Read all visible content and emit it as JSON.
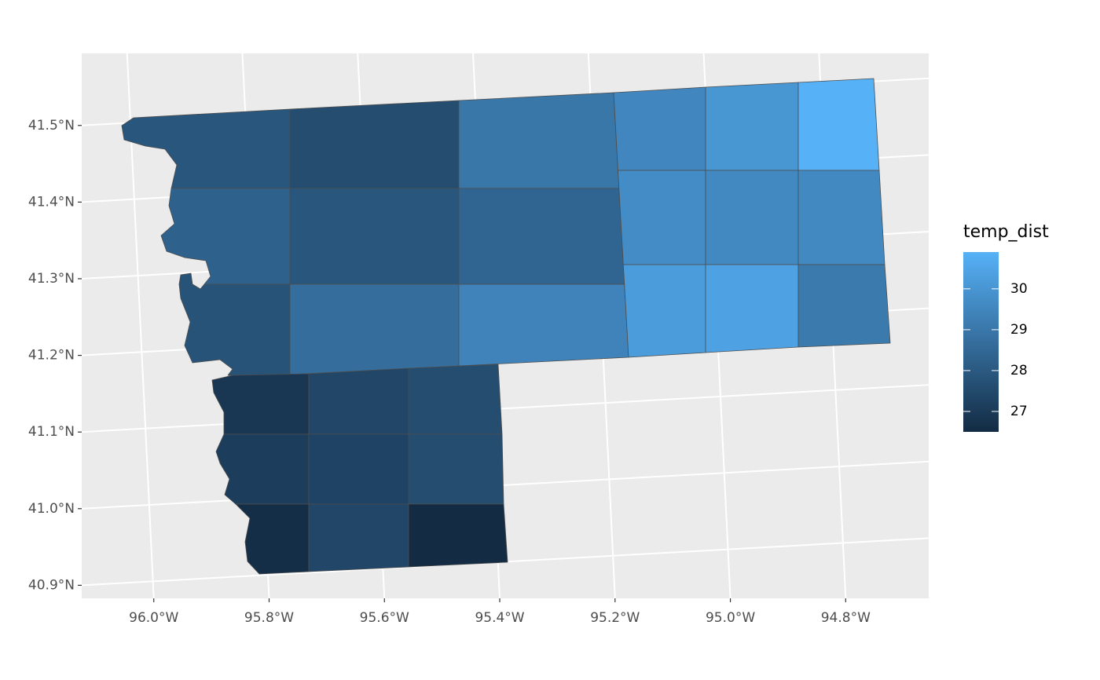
{
  "chart_data": {
    "type": "choropleth",
    "legend_title": "temp_dist",
    "legend_ticks": [
      27,
      28,
      29,
      30
    ],
    "low": "#132B43",
    "high": "#56B1F7",
    "values": [
      27.9,
      27.6,
      29.0,
      29.5,
      30.0,
      30.9,
      28.3,
      27.9,
      28.4,
      29.7,
      29.6,
      29.6,
      27.8,
      28.7,
      29.4,
      30.2,
      30.4,
      29.1,
      26.9,
      27.4,
      27.6,
      27.1,
      27.3,
      27.6,
      26.6,
      27.4,
      26.5
    ],
    "xlim": [
      -96.125,
      -94.656
    ],
    "ylim": [
      40.883,
      41.594
    ],
    "xticks": [
      {
        "value": -96.0,
        "label": "96.0°W"
      },
      {
        "value": -95.8,
        "label": "95.8°W"
      },
      {
        "value": -95.6,
        "label": "95.6°W"
      },
      {
        "value": -95.4,
        "label": "95.4°W"
      },
      {
        "value": -95.2,
        "label": "95.2°W"
      },
      {
        "value": -95.0,
        "label": "95.0°W"
      },
      {
        "value": -94.8,
        "label": "94.8°W"
      }
    ],
    "yticks": [
      {
        "value": 40.9,
        "label": "40.9°N"
      },
      {
        "value": 41.0,
        "label": "41.0°N"
      },
      {
        "value": 41.1,
        "label": "41.1°N"
      },
      {
        "value": 41.2,
        "label": "41.2°N"
      },
      {
        "value": 41.3,
        "label": "41.3°N"
      },
      {
        "value": 41.4,
        "label": "41.4°N"
      },
      {
        "value": 41.5,
        "label": "41.5°N"
      }
    ],
    "grid": true
  }
}
